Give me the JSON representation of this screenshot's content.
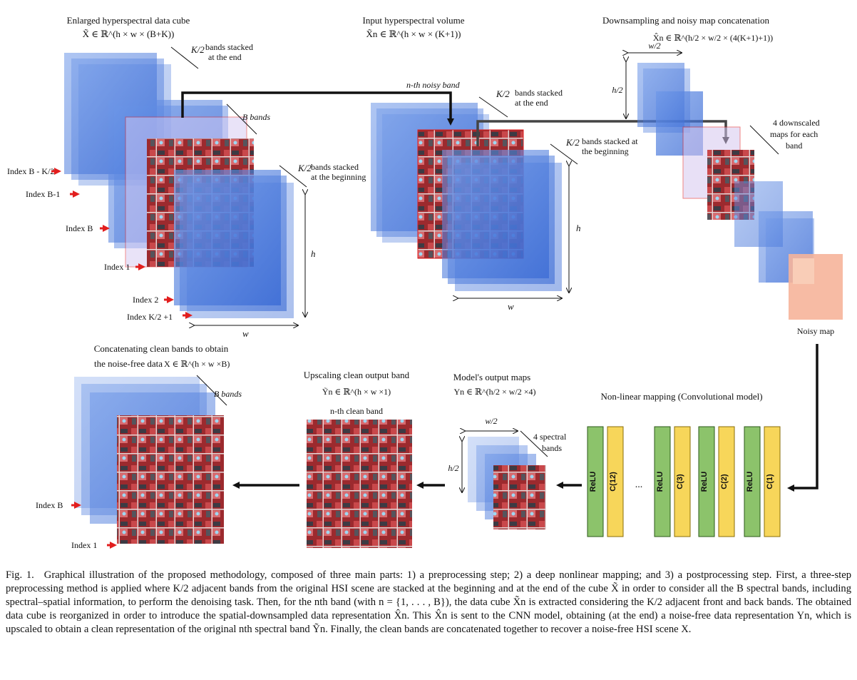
{
  "sections": {
    "cube1": {
      "title": "Enlarged hyperspectral data cube",
      "math": "X̃ ∈ ℝ^(h × w × (B+K))",
      "k_fraction": "K/2",
      "top_note": [
        "bands stacked",
        "at the end"
      ],
      "b_label": "B bands",
      "bottom_note": [
        "bands stacked",
        "at the beginning"
      ],
      "h_label": "h",
      "w_label": "w",
      "indices": [
        "Index B - K/2",
        "Index B-1",
        "Index B",
        "Index 1",
        "Index 2",
        "Index K/2 +1"
      ]
    },
    "volume": {
      "title": "Input hyperspectral volume",
      "math": "X̃n ∈ ℝ^(h × w × (K+1))",
      "noisy_band_label": "n-th noisy band",
      "end_note": [
        "bands stacked",
        "at the end"
      ],
      "begin_note": [
        "bands stacked at",
        "the beginning"
      ],
      "h_label": "h",
      "w_label": "w"
    },
    "downsampling": {
      "title": "Downsampling and noisy map concatenation",
      "math": "X̂n ∈ ℝ^(h/2 × w/2 × (4(K+1)+1))",
      "w_half": "w/2",
      "h_half": "h/2",
      "note": [
        "4 downscaled",
        "maps for each",
        "band"
      ],
      "noisy_map": "Noisy map"
    },
    "output_cube": {
      "title": [
        "Concatenating clean bands to obtain",
        "the noise-free data"
      ],
      "math": "X ∈ ℝ^(h × w ×B)",
      "b_label": "B bands",
      "indices": [
        "Index B",
        "Index 1"
      ]
    },
    "upscaling": {
      "title": "Upscaling clean output band",
      "math": "Ỹn ∈ ℝ^(h × w ×1)",
      "clean_band": "n-th clean band"
    },
    "model_output": {
      "title": "Model's output maps",
      "math": "Yn ∈ ℝ^(h/2 × w/2 ×4)",
      "w_half": "w/2",
      "h_half": "h/2",
      "note": [
        "4 spectral",
        "bands"
      ]
    },
    "mapping": {
      "title": "Non-linear mapping (Convolutional model)",
      "layers": [
        "ReLU",
        "C(12)",
        "ReLU",
        "C(3)",
        "ReLU",
        "C(2)",
        "ReLU",
        "C(1)"
      ],
      "ellipsis": "..."
    }
  },
  "caption": {
    "label": "Fig. 1.",
    "text": "Graphical illustration of the proposed methodology, composed of three main parts: 1) a preprocessing step; 2) a deep nonlinear mapping; and 3) a postprocessing step. First, a three-step preprocessing method is applied where K/2 adjacent bands from the original HSI scene are stacked at the beginning and at the end of the cube X̃ in order to consider all the B spectral bands, including spectral–spatial information, to perform the denoising task. Then, for the nth band (with n = {1, . . . , B}), the data cube X̃n is extracted considering the K/2 adjacent front and back bands. The obtained data cube is reorganized in order to introduce the spatial-downsampled data representation X̂n. This X̂n is sent to the CNN model, obtaining (at the end) a noise-free data representation Yn, which is upscaled to obtain a clean representation of the original nth spectral band Ỹn. Finally, the clean bands are concatenated together to recover a noise-free HSI scene X."
  },
  "colors": {
    "cube_blue": "#3a6fd6",
    "relu_green": "#8cc36b",
    "conv_yellow": "#f7d65a",
    "arrow_red": "#e21e1e",
    "noisy_map": "#f6b49a",
    "scene_red": "#a42a2a"
  }
}
